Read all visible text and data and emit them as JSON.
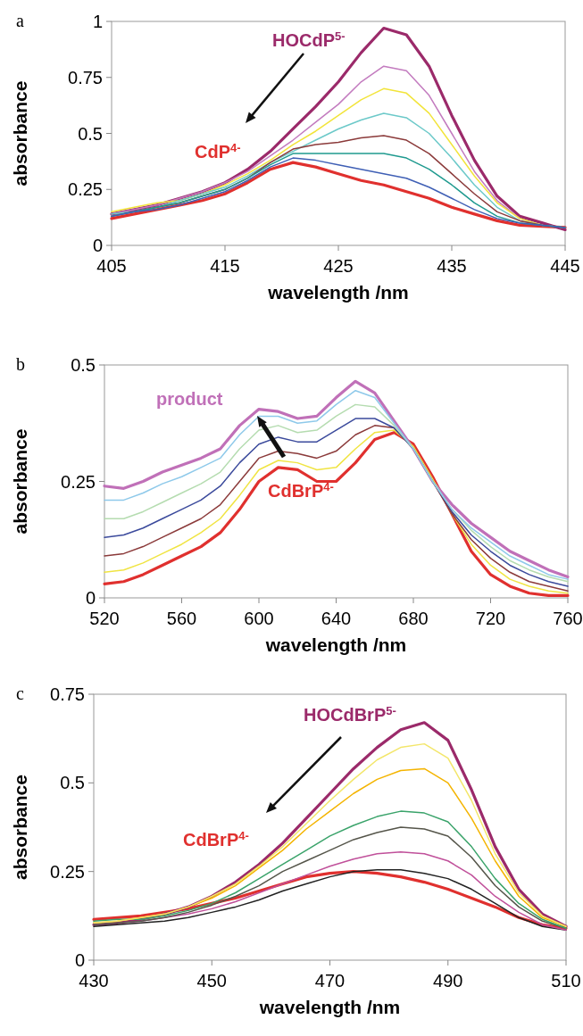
{
  "chart_data": [
    {
      "type": "line",
      "annotations": [
        "a"
      ],
      "xlabel": "wavelength /nm",
      "ylabel": "absorbance",
      "xlim": [
        405,
        445
      ],
      "xticks": [
        405,
        415,
        425,
        435,
        445
      ],
      "ylim": [
        0,
        1
      ],
      "yticks": [
        0,
        0.25,
        0.5,
        0.75,
        1
      ],
      "grid": false,
      "x": [
        405,
        407,
        409,
        411,
        413,
        415,
        417,
        419,
        421,
        423,
        425,
        427,
        429,
        431,
        433,
        435,
        437,
        439,
        441,
        443,
        445
      ],
      "series": [
        {
          "color": "#c37bbf",
          "values": [
            0.14,
            0.16,
            0.18,
            0.21,
            0.24,
            0.28,
            0.33,
            0.4,
            0.47,
            0.55,
            0.63,
            0.73,
            0.8,
            0.78,
            0.67,
            0.5,
            0.33,
            0.2,
            0.12,
            0.09,
            0.08
          ]
        },
        {
          "color": "#f2e43a",
          "values": [
            0.15,
            0.17,
            0.19,
            0.2,
            0.23,
            0.27,
            0.32,
            0.38,
            0.45,
            0.51,
            0.58,
            0.65,
            0.7,
            0.68,
            0.59,
            0.45,
            0.31,
            0.19,
            0.12,
            0.09,
            0.08
          ]
        },
        {
          "color": "#6cc9c9",
          "values": [
            0.14,
            0.15,
            0.17,
            0.2,
            0.23,
            0.26,
            0.31,
            0.37,
            0.42,
            0.47,
            0.52,
            0.56,
            0.59,
            0.57,
            0.5,
            0.39,
            0.27,
            0.17,
            0.11,
            0.09,
            0.08
          ]
        },
        {
          "color": "#8b3a3a",
          "values": [
            0.13,
            0.15,
            0.17,
            0.19,
            0.22,
            0.25,
            0.3,
            0.37,
            0.43,
            0.45,
            0.46,
            0.48,
            0.49,
            0.47,
            0.41,
            0.32,
            0.23,
            0.15,
            0.11,
            0.09,
            0.08
          ]
        },
        {
          "color": "#1f9a8f",
          "values": [
            0.13,
            0.15,
            0.17,
            0.19,
            0.22,
            0.25,
            0.3,
            0.36,
            0.41,
            0.41,
            0.41,
            0.41,
            0.41,
            0.39,
            0.34,
            0.27,
            0.19,
            0.13,
            0.1,
            0.09,
            0.08
          ]
        },
        {
          "color": "#3f5fb5",
          "values": [
            0.13,
            0.15,
            0.16,
            0.18,
            0.21,
            0.24,
            0.29,
            0.35,
            0.39,
            0.38,
            0.36,
            0.34,
            0.32,
            0.3,
            0.26,
            0.21,
            0.16,
            0.12,
            0.1,
            0.09,
            0.08
          ]
        },
        {
          "name": "CdP$^{4-}$",
          "color": "#e0302e",
          "values": [
            0.12,
            0.14,
            0.16,
            0.18,
            0.2,
            0.23,
            0.28,
            0.34,
            0.37,
            0.35,
            0.32,
            0.29,
            0.27,
            0.24,
            0.21,
            0.17,
            0.14,
            0.11,
            0.09,
            0.085,
            0.08
          ]
        },
        {
          "name": "HOCdP$^{5-}$",
          "color": "#9b2a6a",
          "values": [
            0.14,
            0.16,
            0.18,
            0.21,
            0.24,
            0.28,
            0.34,
            0.42,
            0.52,
            0.62,
            0.73,
            0.86,
            0.97,
            0.94,
            0.8,
            0.58,
            0.38,
            0.22,
            0.13,
            0.1,
            0.07
          ]
        }
      ]
    },
    {
      "type": "line",
      "annotations": [
        "b"
      ],
      "xlabel": "wavelength /nm",
      "ylabel": "absorbance",
      "xlim": [
        520,
        760
      ],
      "xticks": [
        520,
        560,
        600,
        640,
        680,
        720,
        760
      ],
      "ylim": [
        0,
        0.5
      ],
      "yticks": [
        0,
        0.25,
        0.5
      ],
      "grid": false,
      "x": [
        520,
        530,
        540,
        550,
        560,
        570,
        580,
        590,
        600,
        610,
        620,
        630,
        640,
        650,
        660,
        670,
        680,
        690,
        700,
        710,
        720,
        730,
        740,
        750,
        760
      ],
      "series": [
        {
          "color": "#f0e442",
          "values": [
            0.055,
            0.06,
            0.075,
            0.095,
            0.115,
            0.14,
            0.17,
            0.22,
            0.275,
            0.295,
            0.29,
            0.275,
            0.28,
            0.32,
            0.355,
            0.36,
            0.325,
            0.255,
            0.18,
            0.115,
            0.07,
            0.04,
            0.025,
            0.015,
            0.01
          ]
        },
        {
          "color": "#8b3a3a",
          "values": [
            0.09,
            0.095,
            0.11,
            0.13,
            0.15,
            0.17,
            0.2,
            0.25,
            0.3,
            0.315,
            0.31,
            0.3,
            0.315,
            0.35,
            0.37,
            0.365,
            0.32,
            0.25,
            0.18,
            0.125,
            0.085,
            0.055,
            0.035,
            0.025,
            0.015
          ]
        },
        {
          "color": "#3b4a9c",
          "values": [
            0.13,
            0.135,
            0.15,
            0.17,
            0.19,
            0.21,
            0.24,
            0.29,
            0.33,
            0.345,
            0.335,
            0.335,
            0.36,
            0.385,
            0.385,
            0.365,
            0.32,
            0.25,
            0.185,
            0.135,
            0.1,
            0.07,
            0.05,
            0.035,
            0.025
          ]
        },
        {
          "color": "#b5dcb0",
          "values": [
            0.17,
            0.17,
            0.185,
            0.205,
            0.225,
            0.245,
            0.27,
            0.32,
            0.36,
            0.37,
            0.355,
            0.36,
            0.39,
            0.415,
            0.41,
            0.37,
            0.32,
            0.25,
            0.19,
            0.145,
            0.11,
            0.08,
            0.06,
            0.045,
            0.035
          ]
        },
        {
          "color": "#8ec9ea",
          "values": [
            0.21,
            0.21,
            0.225,
            0.245,
            0.26,
            0.28,
            0.3,
            0.35,
            0.39,
            0.39,
            0.375,
            0.38,
            0.415,
            0.445,
            0.43,
            0.375,
            0.32,
            0.25,
            0.19,
            0.15,
            0.12,
            0.09,
            0.07,
            0.05,
            0.04
          ]
        },
        {
          "name": "CdBrP$^{4-}$",
          "color": "#e0302e",
          "values": [
            0.03,
            0.035,
            0.05,
            0.07,
            0.09,
            0.11,
            0.14,
            0.19,
            0.25,
            0.28,
            0.275,
            0.25,
            0.25,
            0.29,
            0.34,
            0.355,
            0.33,
            0.26,
            0.18,
            0.1,
            0.05,
            0.025,
            0.01,
            0.005,
            0.005
          ]
        },
        {
          "name": "product",
          "color": "#c070b8",
          "values": [
            0.24,
            0.235,
            0.25,
            0.27,
            0.285,
            0.3,
            0.32,
            0.37,
            0.405,
            0.4,
            0.385,
            0.39,
            0.43,
            0.465,
            0.44,
            0.38,
            0.32,
            0.25,
            0.2,
            0.16,
            0.13,
            0.1,
            0.08,
            0.06,
            0.045
          ]
        }
      ]
    },
    {
      "type": "line",
      "annotations": [
        "c"
      ],
      "xlabel": "wavelength /nm",
      "ylabel": "absorbance",
      "xlim": [
        430,
        510
      ],
      "xticks": [
        430,
        450,
        470,
        490,
        510
      ],
      "ylim": [
        0,
        0.75
      ],
      "yticks": [
        0,
        0.25,
        0.5,
        0.75
      ],
      "grid": false,
      "x": [
        430,
        434,
        438,
        442,
        446,
        450,
        454,
        458,
        462,
        466,
        470,
        474,
        478,
        482,
        486,
        490,
        494,
        498,
        502,
        506,
        510
      ],
      "series": [
        {
          "color": "#222222",
          "values": [
            0.095,
            0.1,
            0.105,
            0.11,
            0.12,
            0.135,
            0.15,
            0.17,
            0.195,
            0.215,
            0.235,
            0.25,
            0.255,
            0.255,
            0.245,
            0.23,
            0.2,
            0.16,
            0.12,
            0.095,
            0.085
          ]
        },
        {
          "color": "#c0509a",
          "values": [
            0.1,
            0.105,
            0.11,
            0.12,
            0.13,
            0.145,
            0.165,
            0.19,
            0.215,
            0.24,
            0.265,
            0.285,
            0.3,
            0.305,
            0.3,
            0.28,
            0.24,
            0.18,
            0.135,
            0.1,
            0.085
          ]
        },
        {
          "color": "#55554a",
          "values": [
            0.1,
            0.105,
            0.11,
            0.12,
            0.135,
            0.155,
            0.18,
            0.21,
            0.25,
            0.28,
            0.31,
            0.34,
            0.36,
            0.375,
            0.37,
            0.35,
            0.29,
            0.21,
            0.15,
            0.11,
            0.09
          ]
        },
        {
          "color": "#3aa36a",
          "values": [
            0.11,
            0.115,
            0.115,
            0.125,
            0.14,
            0.16,
            0.19,
            0.23,
            0.27,
            0.31,
            0.35,
            0.38,
            0.405,
            0.42,
            0.415,
            0.39,
            0.32,
            0.23,
            0.16,
            0.115,
            0.09
          ]
        },
        {
          "color": "#f4b400",
          "values": [
            0.105,
            0.11,
            0.12,
            0.13,
            0.15,
            0.175,
            0.21,
            0.26,
            0.31,
            0.37,
            0.42,
            0.47,
            0.51,
            0.535,
            0.54,
            0.5,
            0.4,
            0.28,
            0.18,
            0.12,
            0.095
          ]
        },
        {
          "color": "#f3e66a",
          "values": [
            0.105,
            0.11,
            0.12,
            0.13,
            0.15,
            0.18,
            0.215,
            0.265,
            0.32,
            0.385,
            0.45,
            0.51,
            0.565,
            0.6,
            0.61,
            0.57,
            0.45,
            0.3,
            0.19,
            0.125,
            0.095
          ]
        },
        {
          "name": "CdBrP$^{4-}$",
          "color": "#e0302e",
          "values": [
            0.115,
            0.12,
            0.125,
            0.135,
            0.145,
            0.16,
            0.175,
            0.195,
            0.215,
            0.235,
            0.245,
            0.25,
            0.245,
            0.235,
            0.22,
            0.2,
            0.175,
            0.15,
            0.12,
            0.1,
            0.09
          ]
        },
        {
          "name": "HOCdBrP$^{5-}$",
          "color": "#9b2a6a",
          "values": [
            0.1,
            0.105,
            0.115,
            0.13,
            0.15,
            0.18,
            0.22,
            0.27,
            0.33,
            0.4,
            0.47,
            0.54,
            0.6,
            0.65,
            0.67,
            0.62,
            0.48,
            0.32,
            0.2,
            0.13,
            0.095
          ]
        }
      ]
    }
  ]
}
